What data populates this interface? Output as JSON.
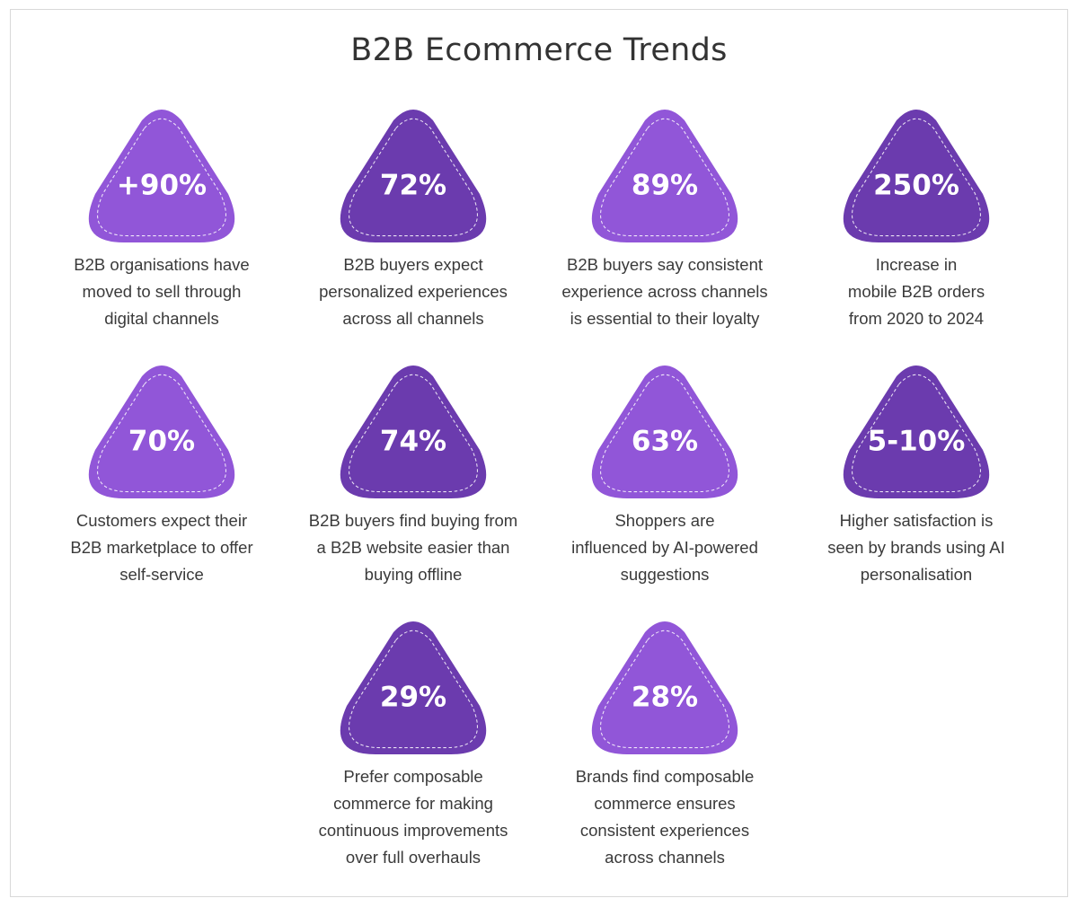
{
  "title": "B2B Ecommerce Trends",
  "items": [
    {
      "stat": "+90%",
      "color": "#9156d8",
      "lines": [
        "B2B organisations have",
        "moved to sell through",
        "digital channels"
      ]
    },
    {
      "stat": "72%",
      "color": "#6b3bae",
      "lines": [
        "B2B buyers expect",
        "personalized experiences",
        "across all channels"
      ]
    },
    {
      "stat": "89%",
      "color": "#9156d8",
      "lines": [
        "B2B buyers say consistent",
        "experience across channels",
        "is essential to their loyalty"
      ]
    },
    {
      "stat": "250%",
      "color": "#6b3bae",
      "lines": [
        "Increase in",
        "mobile B2B orders",
        "from 2020 to 2024"
      ]
    },
    {
      "stat": "70%",
      "color": "#9156d8",
      "lines": [
        "Customers expect their",
        "B2B marketplace to offer",
        "self-service"
      ]
    },
    {
      "stat": "74%",
      "color": "#6b3bae",
      "lines": [
        "B2B buyers find buying from",
        "a B2B website easier than",
        "buying offline"
      ]
    },
    {
      "stat": "63%",
      "color": "#9156d8",
      "lines": [
        "Shoppers are",
        "influenced by AI-powered",
        "suggestions"
      ]
    },
    {
      "stat": "5-10%",
      "color": "#6b3bae",
      "lines": [
        "Higher satisfaction is",
        "seen by brands using AI",
        "personalisation"
      ]
    },
    {
      "stat": "29%",
      "color": "#6b3bae",
      "lines": [
        "Prefer composable",
        "commerce for making",
        "continuous improvements",
        "over full overhauls"
      ]
    },
    {
      "stat": "28%",
      "color": "#9156d8",
      "lines": [
        "Brands find composable",
        "commerce ensures",
        "consistent experiences",
        "across channels"
      ]
    }
  ]
}
